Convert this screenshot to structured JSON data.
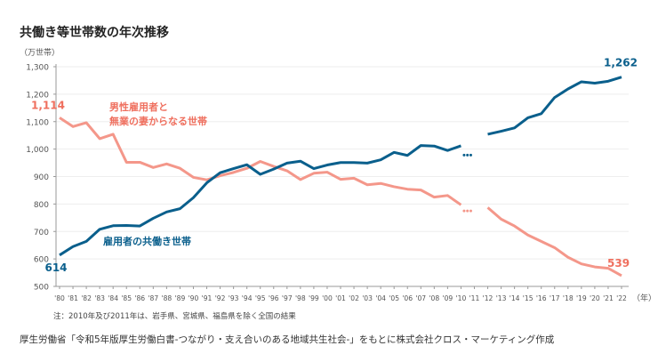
{
  "title": "共働き等世帯数の年次推移",
  "note": "注：2010年及び2011年は、岩手県、宮城県、福島県を除く全国の結果",
  "source": "厚生労働省「令和5年版厚生労働白書-つながり・支え合いのある地域共生社会-」をもとに株式会社クロス・マーケティング作成",
  "chart_data": {
    "type": "line",
    "ylabel": "（万世帯）",
    "xlabel": "（年）",
    "ylim": [
      500,
      1300
    ],
    "yticks": [
      "500",
      "600",
      "700",
      "800",
      "900",
      "1,000",
      "1,100",
      "1,200",
      "1,300"
    ],
    "grid": true,
    "categories": [
      "'80",
      "'81",
      "'82",
      "'83",
      "'84",
      "'85",
      "'86",
      "'87",
      "'88",
      "'89",
      "'90",
      "'91",
      "'92",
      "'93",
      "'94",
      "'95",
      "'96",
      "'97",
      "'98",
      "'99",
      "'00",
      "'01",
      "'02",
      "'03",
      "'04",
      "'05",
      "'06",
      "'07",
      "'08",
      "'09",
      "'10",
      "'11",
      "'12",
      "'13",
      "'14",
      "'15",
      "'16",
      "'17",
      "'18",
      "'19",
      "'20",
      "'21",
      "'22"
    ],
    "series": [
      {
        "name": "男性雇用者と無業の妻からなる世帯",
        "name_lines": [
          "男性雇用者と",
          "無業の妻からなる世帯"
        ],
        "color": "#f4978a",
        "label_color": "#ef6f5e",
        "values": [
          1114,
          1082,
          1096,
          1038,
          1054,
          952,
          952,
          933,
          946,
          930,
          897,
          888,
          903,
          915,
          930,
          955,
          937,
          921,
          889,
          912,
          916,
          890,
          894,
          870,
          875,
          863,
          854,
          851,
          825,
          831,
          797,
          null,
          787,
          745,
          720,
          687,
          664,
          641,
          606,
          582,
          571,
          566,
          539
        ],
        "gap_marker_level": 775,
        "start_label": "1,114",
        "end_label": "539"
      },
      {
        "name": "雇用者の共働き世帯",
        "name_lines": [
          "雇用者の共働き世帯"
        ],
        "color": "#0a5f8c",
        "label_color": "#0a5f8c",
        "values": [
          614,
          645,
          664,
          708,
          721,
          722,
          720,
          748,
          771,
          783,
          823,
          877,
          914,
          929,
          943,
          908,
          927,
          949,
          956,
          929,
          942,
          951,
          951,
          949,
          961,
          988,
          977,
          1013,
          1011,
          995,
          1012,
          null,
          1054,
          1065,
          1077,
          1114,
          1129,
          1188,
          1219,
          1245,
          1240,
          1247,
          1262
        ],
        "gap_marker_level": 978,
        "start_label": "614",
        "end_label": "1,262"
      }
    ]
  }
}
